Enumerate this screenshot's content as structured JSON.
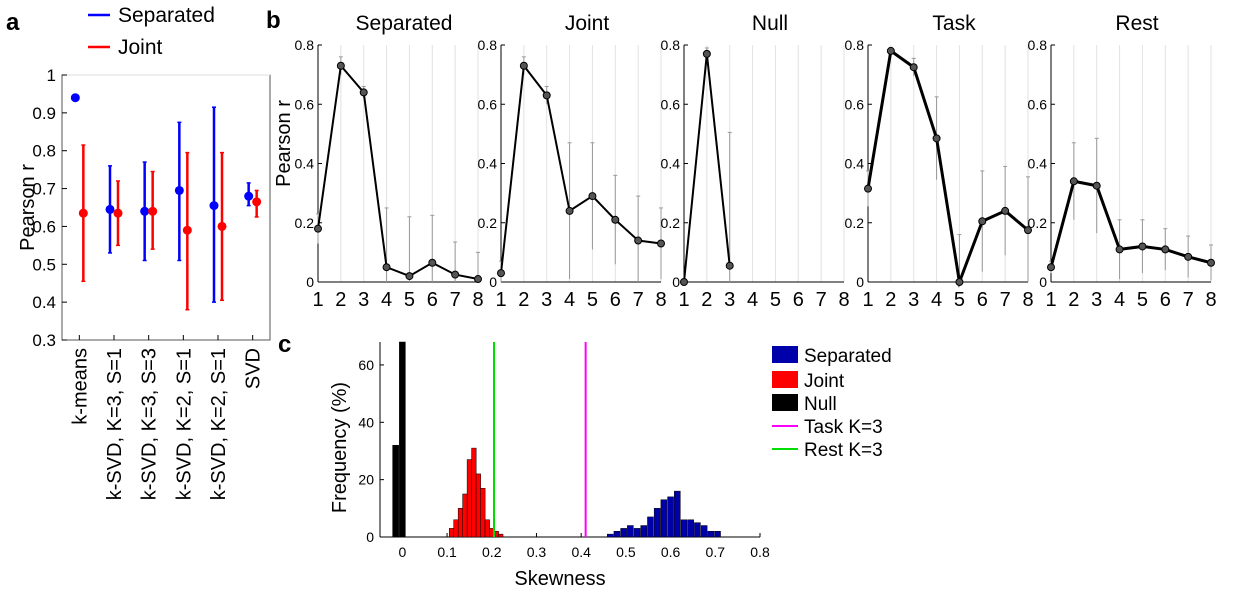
{
  "panel_labels": [
    "a",
    "b",
    "c"
  ],
  "chart_data": [
    {
      "id": "a",
      "type": "scatter",
      "ylabel": "Pearson r",
      "ylim": [
        0.3,
        1
      ],
      "yticks": [
        "0.3",
        "0.4",
        "0.5",
        "0.6",
        "0.7",
        "0.8",
        "0.9",
        "1"
      ],
      "categories": [
        "k-means",
        "k-SVD, K=3,  S=1",
        "k-SVD, K=3,  S=3",
        "k-SVD, K=2,  S=1",
        "k-SVD, K=2,  S=1",
        "SVD"
      ],
      "legend": [
        "Separated",
        "Joint"
      ],
      "legend_position": "top",
      "colors": {
        "Separated": "#0000ff",
        "Joint": "#ff0000"
      },
      "series": [
        {
          "name": "Separated",
          "values": [
            0.94,
            0.645,
            0.64,
            0.695,
            0.655,
            0.68
          ],
          "low": [
            null,
            0.53,
            0.51,
            0.51,
            0.4,
            0.655
          ],
          "high": [
            null,
            0.76,
            0.77,
            0.875,
            0.915,
            0.715
          ]
        },
        {
          "name": "Joint",
          "values": [
            0.635,
            0.635,
            0.64,
            0.59,
            0.6,
            0.665
          ],
          "low": [
            0.455,
            0.55,
            0.54,
            0.38,
            0.405,
            0.625
          ],
          "high": [
            0.815,
            0.72,
            0.745,
            0.795,
            0.795,
            0.695
          ]
        }
      ]
    },
    {
      "id": "b",
      "type": "line",
      "ylabel": "Pearson r",
      "ylim": [
        0,
        0.8
      ],
      "yticks": [
        "0",
        "0.2",
        "0.4",
        "0.6",
        "0.8"
      ],
      "x": [
        "1",
        "2",
        "3",
        "4",
        "5",
        "6",
        "7",
        "8"
      ],
      "grid": "vertical",
      "panels": [
        {
          "title": "Separated",
          "values": [
            0.18,
            0.73,
            0.64,
            0.05,
            0.02,
            0.065,
            0.025,
            0.01
          ],
          "err": [
            0.05,
            0.03,
            0.02,
            0.2,
            0.2,
            0.16,
            0.11,
            0.09
          ]
        },
        {
          "title": "Joint",
          "values": [
            0.03,
            0.73,
            0.63,
            0.24,
            0.29,
            0.21,
            0.14,
            0.13
          ],
          "err": [
            0.04,
            0.03,
            0.03,
            0.23,
            0.18,
            0.15,
            0.15,
            0.12
          ]
        },
        {
          "title": "Null",
          "values": [
            0.0,
            0.77,
            0.055,
            null,
            null,
            null,
            null,
            null
          ],
          "err": [
            0,
            0.02,
            0.45,
            null,
            null,
            null,
            null,
            null
          ]
        },
        {
          "title": "Task",
          "values": [
            0.315,
            0.78,
            0.725,
            0.485,
            0.0,
            0.205,
            0.24,
            0.175
          ],
          "err": [
            0.06,
            0.01,
            0.03,
            0.14,
            0.16,
            0.17,
            0.15,
            0.18
          ]
        },
        {
          "title": "Rest",
          "values": [
            0.05,
            0.34,
            0.325,
            0.11,
            0.12,
            0.11,
            0.085,
            0.065
          ],
          "err": [
            0.02,
            0.13,
            0.16,
            0.1,
            0.09,
            0.07,
            0.07,
            0.06
          ]
        }
      ]
    },
    {
      "id": "c",
      "type": "bar",
      "xlabel": "Skewness",
      "ylabel": "Frequency (%)",
      "xlim": [
        -0.05,
        0.8
      ],
      "ylim": [
        0,
        68
      ],
      "xticks": [
        "0",
        "0.1",
        "0.2",
        "0.3",
        "0.4",
        "0.5",
        "0.6",
        "0.7",
        "0.8"
      ],
      "yticks": [
        "0",
        "20",
        "40",
        "60"
      ],
      "legend_position": "right",
      "series": [
        {
          "name": "Separated",
          "color": "#0000aa",
          "x": [
            0.465,
            0.48,
            0.495,
            0.51,
            0.525,
            0.54,
            0.555,
            0.57,
            0.585,
            0.6,
            0.615,
            0.63,
            0.645,
            0.66,
            0.675,
            0.69,
            0.705
          ],
          "values": [
            1,
            2,
            3,
            4,
            3,
            4,
            7,
            10,
            13,
            14,
            16,
            6,
            6,
            5,
            4,
            2,
            2
          ]
        },
        {
          "name": "Joint",
          "color": "#ff0000",
          "x": [
            0.11,
            0.12,
            0.13,
            0.14,
            0.15,
            0.16,
            0.17,
            0.18,
            0.19,
            0.2,
            0.21,
            0.22
          ],
          "values": [
            3,
            6,
            10,
            15,
            27,
            31,
            22,
            17,
            6,
            3,
            2,
            1
          ]
        },
        {
          "name": "Null",
          "color": "#000000",
          "x": [
            -0.015,
            0.0
          ],
          "values": [
            32,
            68
          ]
        },
        {
          "name": "Task K=3",
          "color": "#ff00ff",
          "type": "vline",
          "value": 0.41
        },
        {
          "name": "Rest K=3",
          "color": "#00dd00",
          "type": "vline",
          "value": 0.205
        }
      ]
    }
  ]
}
